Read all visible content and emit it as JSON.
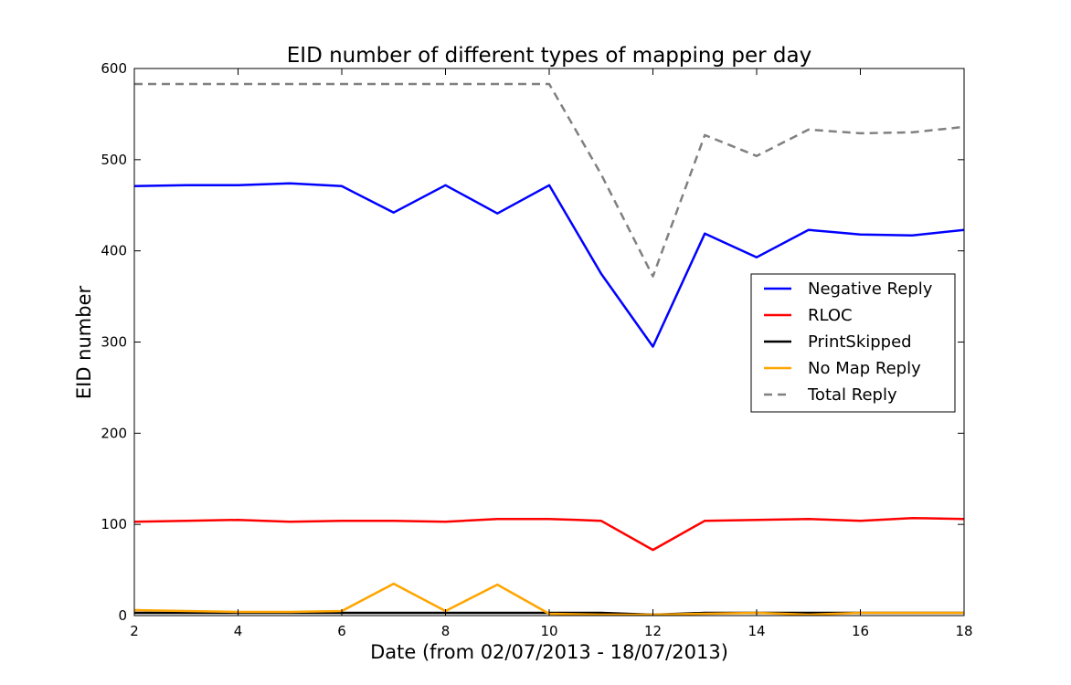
{
  "chart_data": {
    "type": "line",
    "title": "EID number of different types of mapping per day",
    "xlabel": "Date (from 02/07/2013 - 18/07/2013)",
    "ylabel": "EID number",
    "xlim": [
      2,
      18
    ],
    "ylim": [
      0,
      600
    ],
    "xticks": [
      2,
      4,
      6,
      8,
      10,
      12,
      14,
      16,
      18
    ],
    "yticks": [
      0,
      100,
      200,
      300,
      400,
      500,
      600
    ],
    "grid": false,
    "legend_position": "center-right",
    "x": [
      2,
      3,
      4,
      5,
      6,
      7,
      8,
      9,
      10,
      11,
      12,
      13,
      14,
      15,
      16,
      17,
      18
    ],
    "series": [
      {
        "name": "Negative Reply",
        "color": "#0000ff",
        "style": "solid",
        "values": [
          471,
          472,
          472,
          474,
          471,
          442,
          472,
          441,
          472,
          375,
          295,
          419,
          393,
          423,
          418,
          417,
          423
        ]
      },
      {
        "name": "RLOC",
        "color": "#ff0000",
        "style": "solid",
        "values": [
          103,
          104,
          105,
          103,
          104,
          104,
          103,
          106,
          106,
          104,
          72,
          104,
          105,
          106,
          104,
          107,
          106
        ]
      },
      {
        "name": "PrintSkipped",
        "color": "#000000",
        "style": "solid",
        "values": [
          3,
          3,
          3,
          3,
          3,
          3,
          3,
          3,
          3,
          3,
          1,
          3,
          3,
          3,
          3,
          3,
          3
        ]
      },
      {
        "name": "No Map Reply",
        "color": "#ffa500",
        "style": "solid",
        "values": [
          6,
          5,
          4,
          4,
          5,
          35,
          5,
          34,
          2,
          1,
          1,
          2,
          3,
          1,
          3,
          3,
          3
        ]
      },
      {
        "name": "Total Reply",
        "color": "#808080",
        "style": "dashed",
        "values": [
          583,
          583,
          583,
          583,
          583,
          583,
          583,
          583,
          583,
          484,
          372,
          527,
          504,
          533,
          529,
          530,
          536
        ]
      }
    ]
  }
}
